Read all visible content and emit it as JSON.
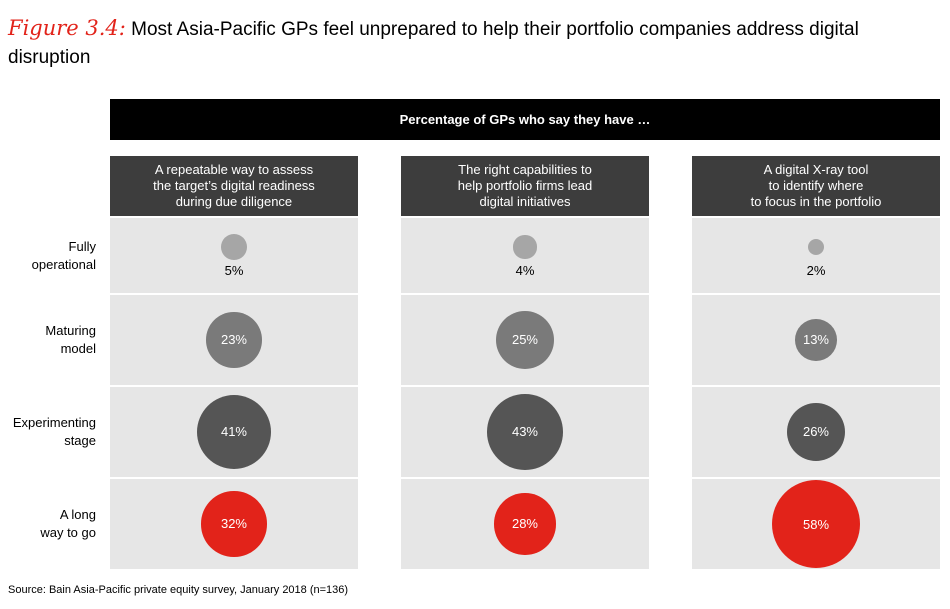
{
  "title": {
    "figure_label": "Figure 3.4:",
    "text": "Most Asia-Pacific GPs feel unprepared to help their portfolio companies address digital disruption"
  },
  "header": "Percentage of GPs who say they have …",
  "source": "Source: Bain Asia-Pacific private equity survey, January 2018 (n=136)",
  "colors": {
    "light": "#a6a6a6",
    "mid": "#7a7a7a",
    "dark": "#555555",
    "red": "#e2231a"
  },
  "chart_data": {
    "type": "bubble-matrix",
    "unit": "%",
    "categories": [
      [
        "A repeatable way to assess",
        "the target’s digital readiness",
        "during due diligence"
      ],
      [
        "The right capabilities to",
        "help portfolio firms lead",
        "digital initiatives"
      ],
      [
        "A digital X-ray tool",
        "to identify where",
        "to focus in the portfolio"
      ]
    ],
    "rows": [
      {
        "label": [
          "Fully",
          "operational"
        ],
        "values": [
          5,
          4,
          2
        ]
      },
      {
        "label": [
          "Maturing",
          "model"
        ],
        "values": [
          23,
          25,
          13
        ]
      },
      {
        "label": [
          "Experimenting",
          "stage"
        ],
        "values": [
          41,
          43,
          26
        ]
      },
      {
        "label": [
          "A long",
          "way to go"
        ],
        "values": [
          32,
          28,
          58
        ]
      }
    ]
  }
}
